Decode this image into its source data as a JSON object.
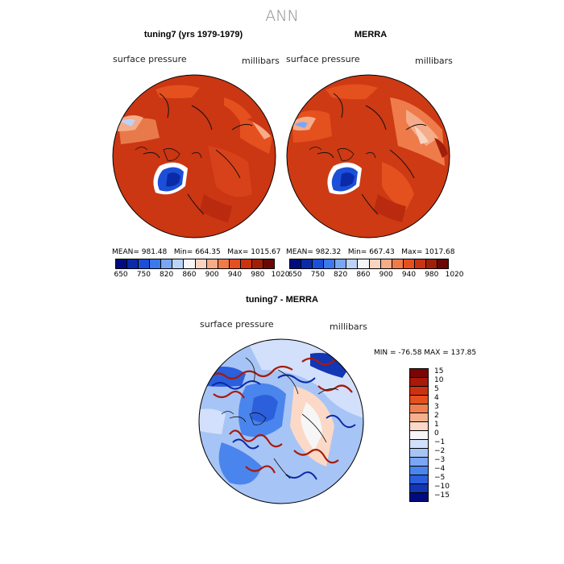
{
  "header": {
    "title": "ANN"
  },
  "panels": [
    {
      "title": "tuning7 (yrs 1979-1979)",
      "variable": "surface pressure",
      "units": "millibars",
      "stats": "MEAN= 981.48   Min= 664.35   Max= 1015.67"
    },
    {
      "title": "MERRA",
      "variable": "surface pressure",
      "units": "millibars",
      "stats": "MEAN= 982.32   Min= 667.43   Max= 1017.68"
    }
  ],
  "diff_panel": {
    "title": "tuning7 - MERRA",
    "variable": "surface pressure",
    "units": "millibars",
    "stats": "MIN = -76.58 MAX = 137.85"
  },
  "colorbar_top": {
    "colors": [
      "#000c7d",
      "#0a2aa8",
      "#1c4fd8",
      "#3c79ec",
      "#7aa6f4",
      "#bcd3f8",
      "#f6f6f6",
      "#f9d4c0",
      "#f5ac89",
      "#ef7b4b",
      "#e5501f",
      "#c93312",
      "#a01f0a",
      "#6b0707"
    ],
    "labels": [
      "650",
      "750",
      "820",
      "860",
      "900",
      "940",
      "980",
      "1020"
    ]
  },
  "colorbar_diff": {
    "colors": [
      "#7a0505",
      "#a81a0a",
      "#cd3210",
      "#e5501f",
      "#f07f50",
      "#f7b08e",
      "#fbd9c6",
      "#f6f6f6",
      "#d2e0fb",
      "#a7c4f6",
      "#7aa6f4",
      "#4a85ee",
      "#2b5fdc",
      "#1336b4",
      "#000c7d"
    ],
    "labels": [
      "15",
      "10",
      "5",
      "4",
      "3",
      "2",
      "1",
      "0",
      "−1",
      "−2",
      "−3",
      "−4",
      "−5",
      "−10",
      "−15"
    ]
  }
}
